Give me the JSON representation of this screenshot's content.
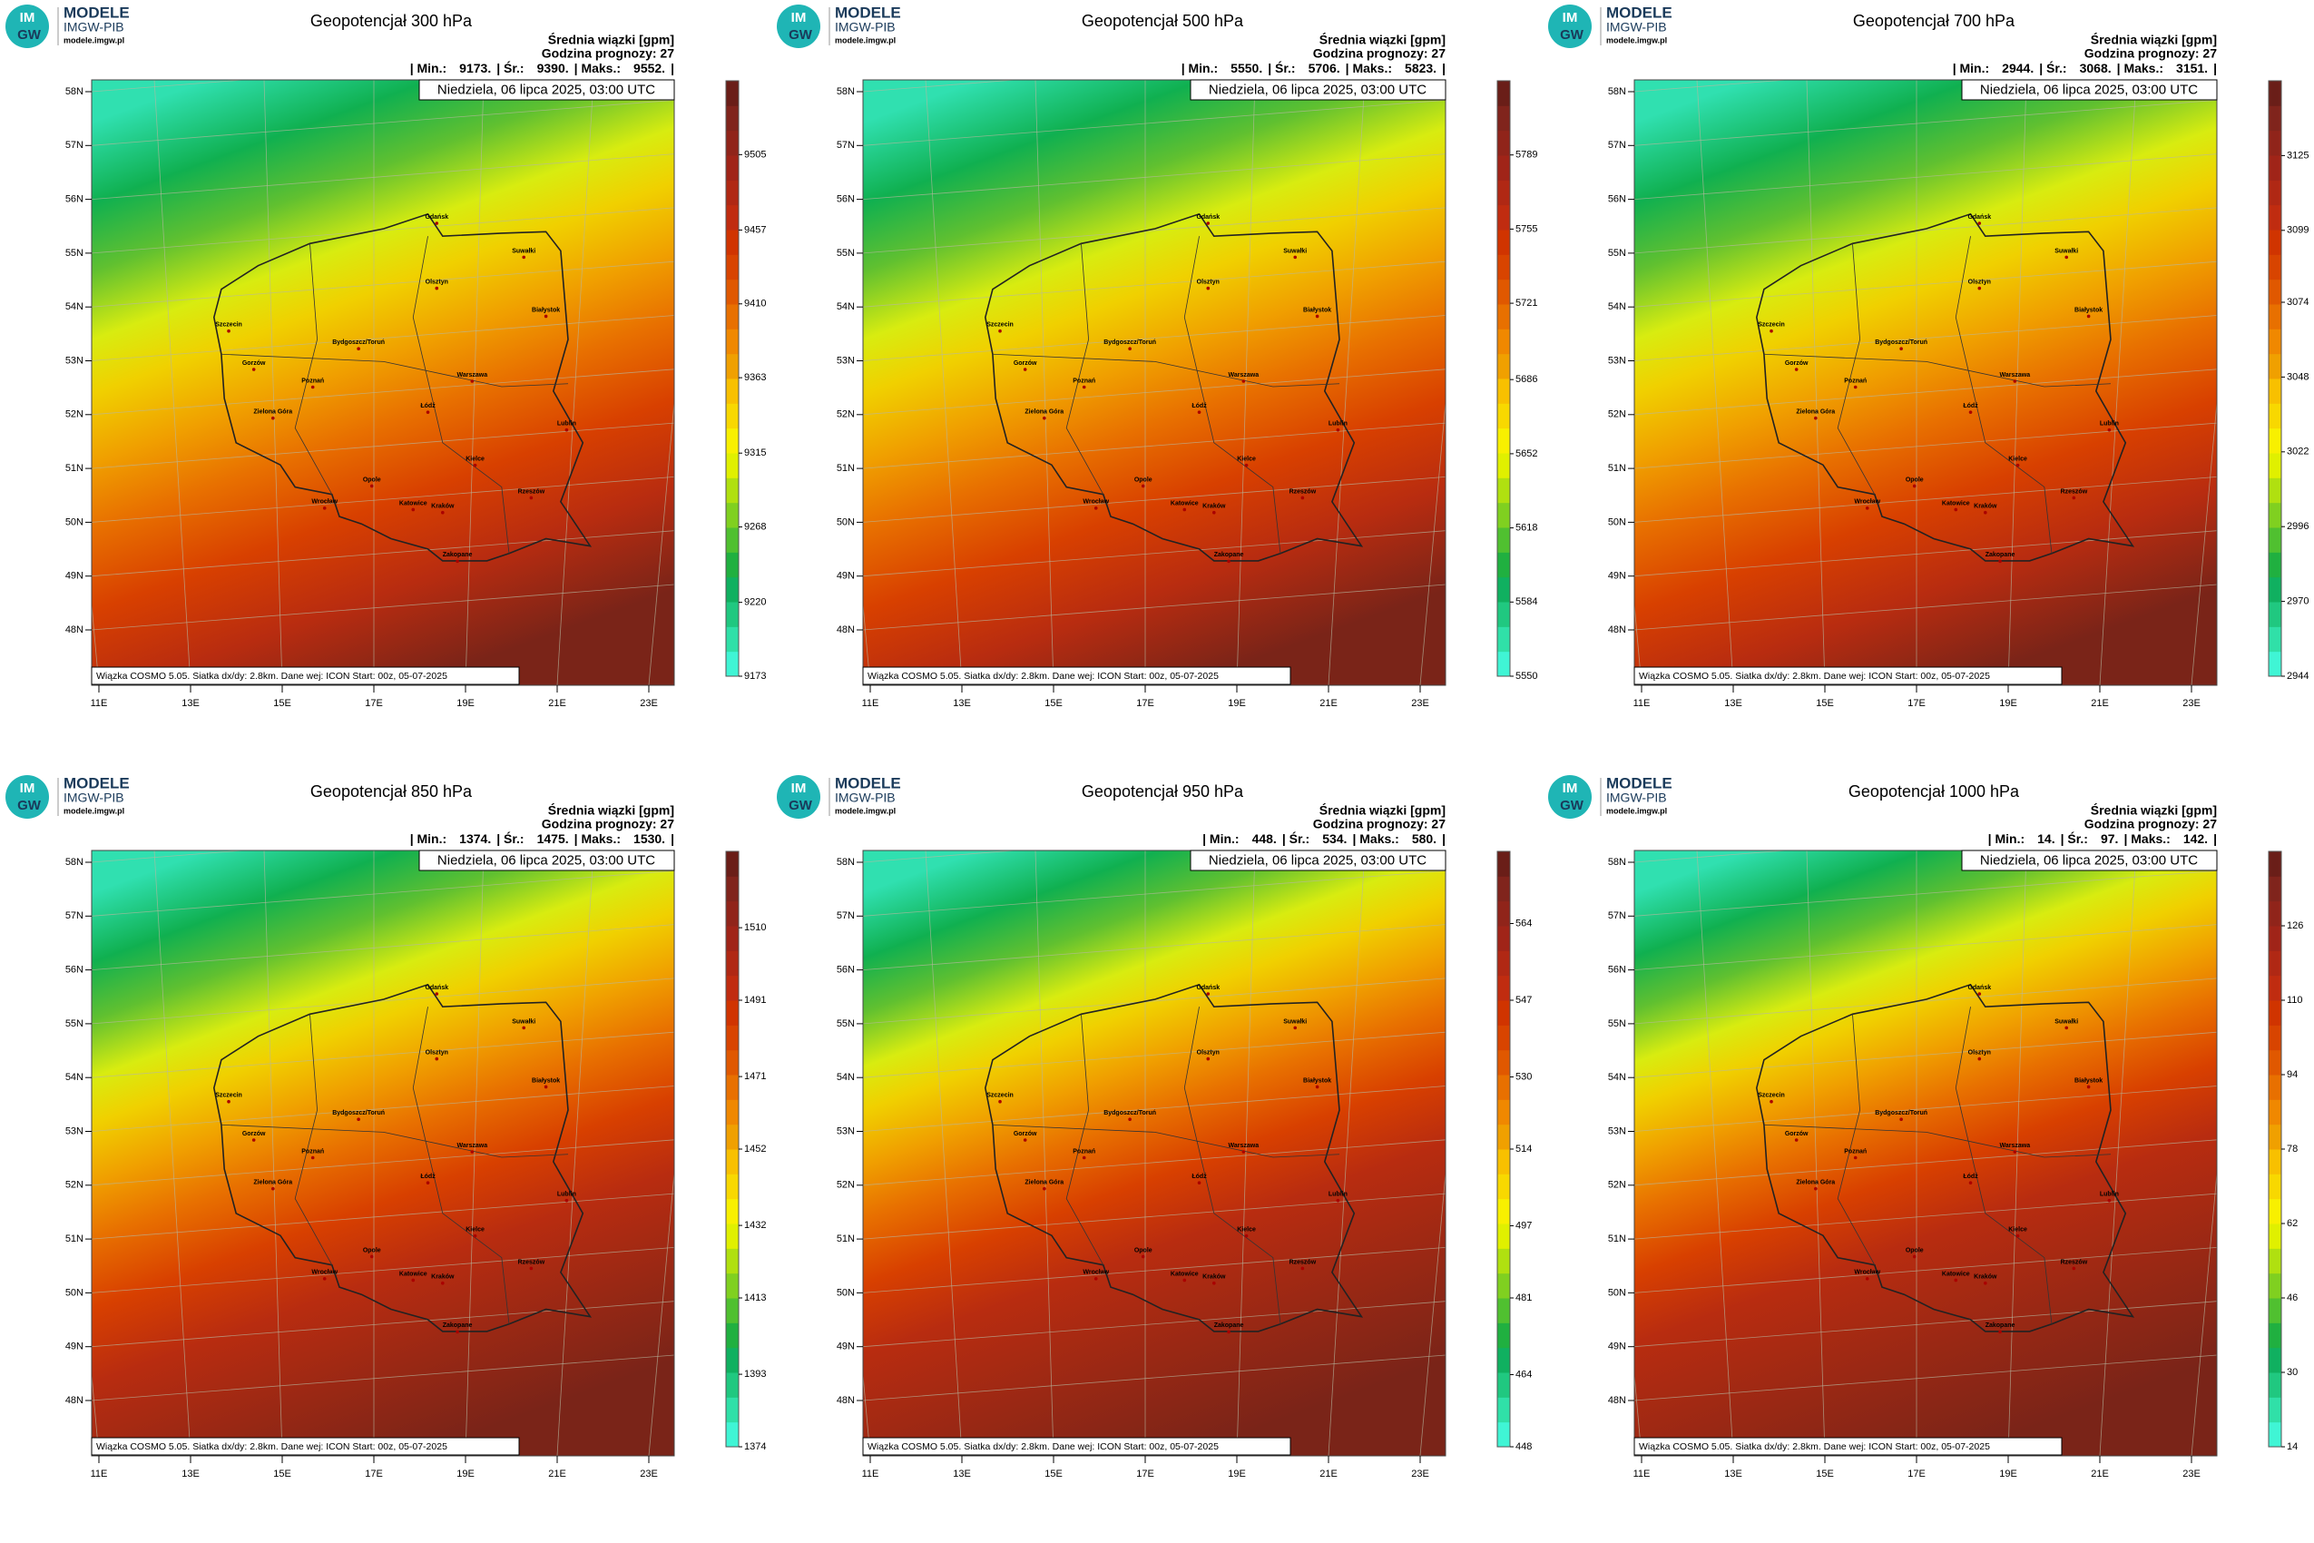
{
  "logo": {
    "badge_top": "IM",
    "badge_bottom": "GW",
    "line1": "MODELE",
    "line2": "IMGW-PIB",
    "url": "modele.imgw.pl"
  },
  "subtitle": "Średnia wiązki [gpm]",
  "forecast_hour": "Godzina prognozy: 27",
  "stats_labels": {
    "min": "| Min.:",
    "mean": "| Śr.:",
    "max": "| Maks.:",
    "end": "|"
  },
  "date": "Niedziela, 06 lipca 2025, 03:00 UTC",
  "footer": "Wiązka COSMO 5.05. Siatka dx/dy: 2.8km. Dane wej: ICON Start: 00z, 05-07-2025",
  "lat_labels": [
    "58N",
    "57N",
    "56N",
    "55N",
    "54N",
    "53N",
    "52N",
    "51N",
    "50N",
    "49N",
    "48N"
  ],
  "lon_labels": [
    "11E",
    "13E",
    "15E",
    "17E",
    "19E",
    "21E",
    "23E"
  ],
  "cities": [
    "Gdańsk",
    "Suwałki",
    "Olsztyn",
    "Białystok",
    "Szczecin",
    "Bydgoszcz/Toruń",
    "Gorzów",
    "Poznań",
    "Warszawa",
    "Łódź",
    "Zielona Góra",
    "Lublin",
    "Wrocław",
    "Kielce",
    "Opole",
    "Rzeszów",
    "Katowice",
    "Kraków",
    "Zakopane"
  ],
  "panels": [
    {
      "title": "Geopotencjał 300 hPa",
      "min": "9173.",
      "mean": "9390.",
      "max": "9552.",
      "clim": [
        9173,
        9552
      ],
      "ticks": [
        9173,
        9220,
        9268,
        9315,
        9363,
        9410,
        9457,
        9505
      ]
    },
    {
      "title": "Geopotencjał 500 hPa",
      "min": "5550.",
      "mean": "5706.",
      "max": "5823.",
      "clim": [
        5550,
        5823
      ],
      "ticks": [
        5550,
        5584,
        5618,
        5652,
        5686,
        5721,
        5755,
        5789
      ]
    },
    {
      "title": "Geopotencjał 700 hPa",
      "min": "2944.",
      "mean": "3068.",
      "max": "3151.",
      "clim": [
        2944,
        3151
      ],
      "ticks": [
        2944,
        2970,
        2996,
        3022,
        3048,
        3074,
        3099,
        3125
      ]
    },
    {
      "title": "Geopotencjał 850 hPa",
      "min": "1374.",
      "mean": "1475.",
      "max": "1530.",
      "clim": [
        1374,
        1530
      ],
      "ticks": [
        1374,
        1393,
        1413,
        1432,
        1452,
        1471,
        1491,
        1510
      ]
    },
    {
      "title": "Geopotencjał 950 hPa",
      "min": "448.",
      "mean": "534.",
      "max": "580.",
      "clim": [
        448,
        580
      ],
      "ticks": [
        448,
        464,
        481,
        497,
        514,
        530,
        547,
        564
      ]
    },
    {
      "title": "Geopotencjał 1000 hPa",
      "min": "14.",
      "mean": "97.",
      "max": "142.",
      "clim": [
        14,
        142
      ],
      "ticks": [
        14,
        30,
        46,
        62,
        78,
        94,
        110,
        126
      ]
    }
  ]
}
